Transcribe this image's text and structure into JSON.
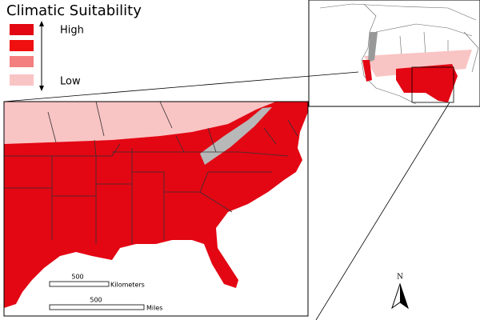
{
  "legend": {
    "title": "Climatic Suitability",
    "high_label": "High",
    "low_label": "Low",
    "swatches": [
      "#e30613",
      "#f01010",
      "#f47f7f",
      "#f9c4c4"
    ]
  },
  "scale_bars": [
    {
      "value": 500,
      "unit": "Kilometers"
    },
    {
      "value": 500,
      "unit": "Miles"
    }
  ],
  "north_arrow": {
    "label": "N"
  }
}
